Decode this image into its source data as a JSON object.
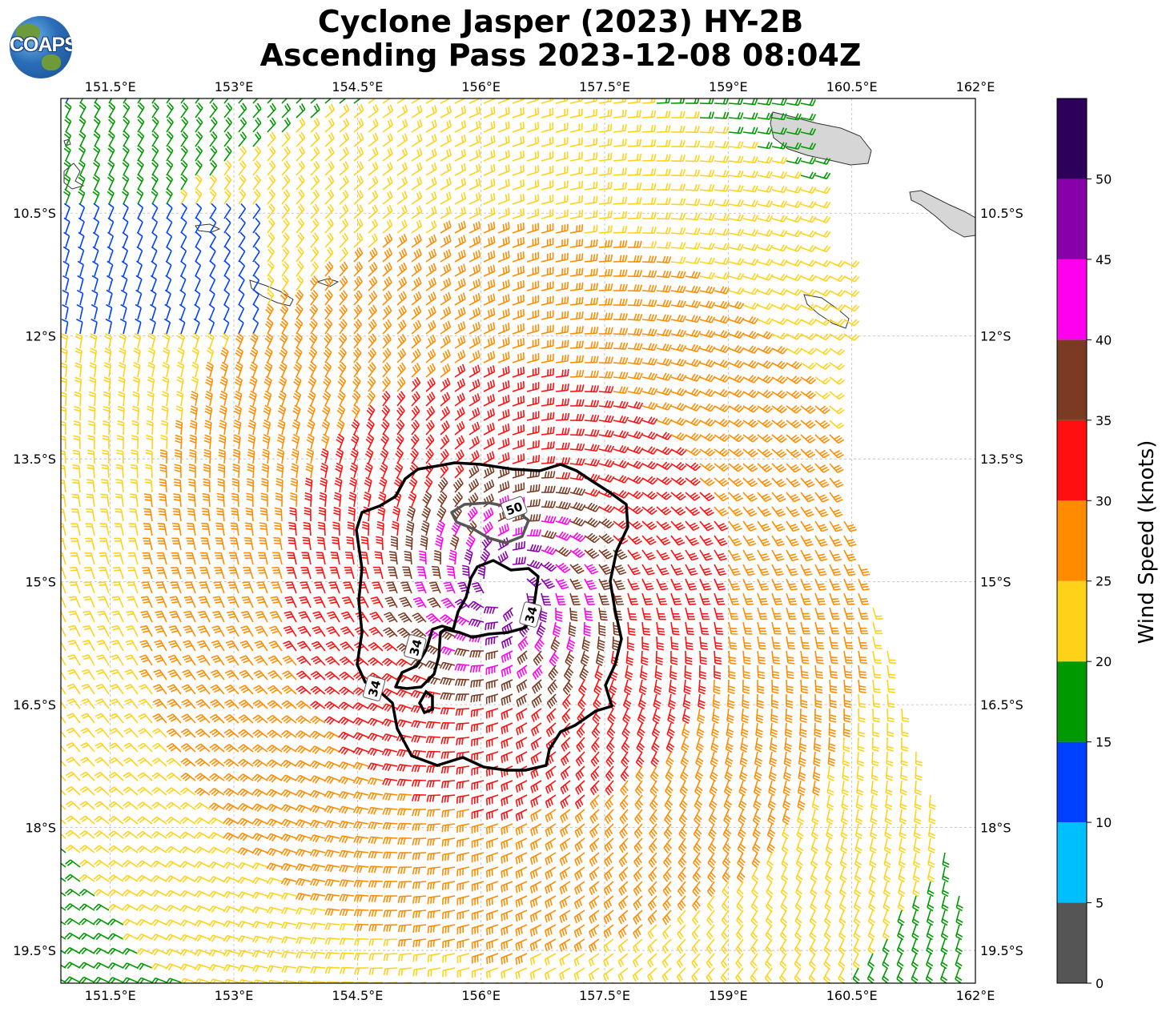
{
  "title": {
    "line1": "Cyclone Jasper (2023) HY-2B",
    "line2": "Ascending Pass 2023-12-08 08:04Z"
  },
  "logo": {
    "text": "COAPS"
  },
  "map": {
    "lon_range": [
      150.9,
      162.0
    ],
    "lat_range": [
      -19.9,
      -9.1
    ],
    "lon_ticks": [
      {
        "value": 151.5,
        "label": "151.5°E"
      },
      {
        "value": 153,
        "label": "153°E"
      },
      {
        "value": 154.5,
        "label": "154.5°E"
      },
      {
        "value": 156,
        "label": "156°E"
      },
      {
        "value": 157.5,
        "label": "157.5°E"
      },
      {
        "value": 159,
        "label": "159°E"
      },
      {
        "value": 160.5,
        "label": "160.5°E"
      },
      {
        "value": 162,
        "label": "162°E"
      }
    ],
    "lat_ticks": [
      {
        "value": -10.5,
        "label": "10.5°S"
      },
      {
        "value": -12,
        "label": "12°S"
      },
      {
        "value": -13.5,
        "label": "13.5°S"
      },
      {
        "value": -15,
        "label": "15°S"
      },
      {
        "value": -16.5,
        "label": "16.5°S"
      },
      {
        "value": -18,
        "label": "18°S"
      },
      {
        "value": -19.5,
        "label": "19.5°S"
      }
    ],
    "grid": true,
    "storm_center": {
      "lon": 156.3,
      "lat": -15.1
    },
    "contour_labels": [
      {
        "text": "50",
        "lon": 156.4,
        "lat": -14.1
      },
      {
        "text": "34",
        "lon": 156.6,
        "lat": -15.4
      },
      {
        "text": "34",
        "lon": 155.2,
        "lat": -15.8
      },
      {
        "text": "34",
        "lon": 154.7,
        "lat": -16.3
      }
    ]
  },
  "colorbar": {
    "title": "Wind Speed (knots)",
    "bins": [
      {
        "from": 0,
        "to": 5,
        "color": "#555555"
      },
      {
        "from": 5,
        "to": 10,
        "color": "#00bfff"
      },
      {
        "from": 10,
        "to": 15,
        "color": "#0040ff"
      },
      {
        "from": 15,
        "to": 20,
        "color": "#009900"
      },
      {
        "from": 20,
        "to": 25,
        "color": "#ffd21a"
      },
      {
        "from": 25,
        "to": 30,
        "color": "#ff8c00"
      },
      {
        "from": 30,
        "to": 35,
        "color": "#ff0f0f"
      },
      {
        "from": 35,
        "to": 40,
        "color": "#7b3a22"
      },
      {
        "from": 40,
        "to": 45,
        "color": "#ff00ee"
      },
      {
        "from": 45,
        "to": 50,
        "color": "#8800aa"
      },
      {
        "from": 50,
        "to": 55,
        "color": "#2d005a"
      }
    ],
    "tick_labels": [
      "0",
      "5",
      "10",
      "15",
      "20",
      "25",
      "30",
      "35",
      "40",
      "45",
      "50"
    ]
  }
}
